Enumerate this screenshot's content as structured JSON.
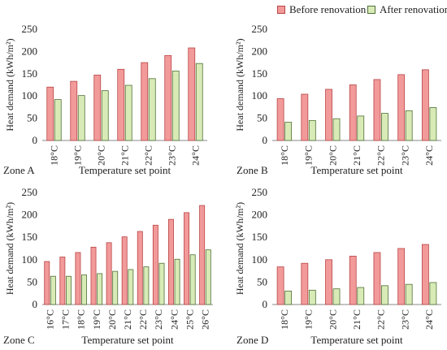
{
  "colors": {
    "before_fill": "#f29a9a",
    "before_stroke": "#b84444",
    "after_fill": "#d8ebb7",
    "after_stroke": "#4f6f35",
    "axis": "#888888",
    "text": "#222222"
  },
  "legend": {
    "before_label": "Before renovation",
    "after_label": "After renovation"
  },
  "chart_data": [
    {
      "type": "bar",
      "panel_label": "Zone A",
      "xlabel": "Temperature set point",
      "ylabel": "Heat demand (kWh/m²)",
      "ylim": [
        0,
        250
      ],
      "yticks": [
        0,
        50,
        100,
        150,
        200,
        250
      ],
      "categories": [
        "18°C",
        "19°C",
        "20°C",
        "21°C",
        "22°C",
        "23°C",
        "24°C"
      ],
      "series": [
        {
          "name": "Before renovation",
          "values": [
            120,
            133,
            147,
            160,
            175,
            191,
            208
          ]
        },
        {
          "name": "After renovation",
          "values": [
            92,
            101,
            112,
            124,
            139,
            156,
            173
          ]
        }
      ]
    },
    {
      "type": "bar",
      "panel_label": "Zone B",
      "xlabel": "Temperature set point",
      "ylabel": "Heat demand (kWh/m²)",
      "ylim": [
        0,
        250
      ],
      "yticks": [
        0,
        50,
        100,
        150,
        200,
        250
      ],
      "categories": [
        "18°C",
        "19°C",
        "20°C",
        "21°C",
        "22°C",
        "23°C",
        "24°C"
      ],
      "series": [
        {
          "name": "Before renovation",
          "values": [
            94,
            104,
            115,
            125,
            137,
            148,
            159
          ]
        },
        {
          "name": "After renovation",
          "values": [
            41,
            45,
            49,
            55,
            61,
            67,
            74
          ]
        }
      ]
    },
    {
      "type": "bar",
      "panel_label": "Zone C",
      "xlabel": "Temperature set point",
      "ylabel": "Heat demand (kWh/m²)",
      "ylim": [
        0,
        250
      ],
      "yticks": [
        0,
        50,
        100,
        150,
        200,
        250
      ],
      "categories": [
        "16°C",
        "17°C",
        "18°C",
        "19°C",
        "20°C",
        "21°C",
        "22°C",
        "23°C",
        "24°C",
        "25°C",
        "26°C"
      ],
      "series": [
        {
          "name": "Before renovation",
          "values": [
            96,
            106,
            116,
            128,
            138,
            151,
            163,
            177,
            190,
            205,
            221
          ]
        },
        {
          "name": "After renovation",
          "values": [
            63,
            63,
            66,
            69,
            74,
            78,
            84,
            92,
            101,
            111,
            122
          ]
        }
      ]
    },
    {
      "type": "bar",
      "panel_label": "Zone D",
      "xlabel": "Temperature set point",
      "ylabel": "Heat demand (kWh/m²)",
      "ylim": [
        0,
        250
      ],
      "yticks": [
        0,
        50,
        100,
        150,
        200,
        250
      ],
      "categories": [
        "18°C",
        "19°C",
        "20°C",
        "21°C",
        "22°C",
        "23°C",
        "24°C"
      ],
      "series": [
        {
          "name": "Before renovation",
          "values": [
            84,
            92,
            100,
            108,
            116,
            125,
            134
          ]
        },
        {
          "name": "After renovation",
          "values": [
            30,
            32,
            35,
            38,
            42,
            45,
            49
          ]
        }
      ]
    }
  ]
}
